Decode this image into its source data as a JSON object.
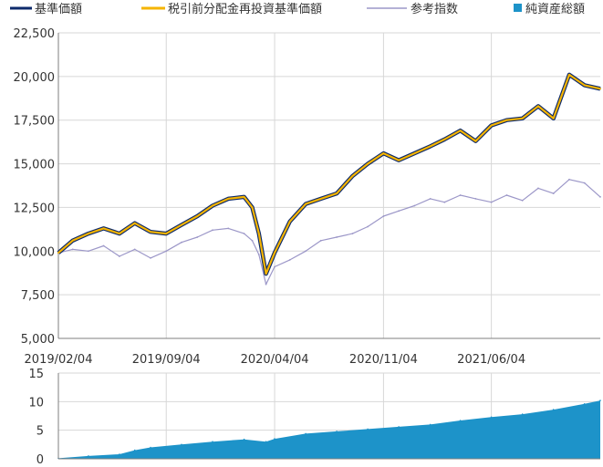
{
  "colors": {
    "nav": "#0d2a6b",
    "reinvested": "#f5b400",
    "index": "#9c97c8",
    "net_assets": "#1d93c9",
    "grid": "#d7d7d7",
    "axis": "#7f7f7f",
    "text": "#333333"
  },
  "legend": {
    "nav": "基準価額",
    "reinvested": "税引前分配金再投資基準価額",
    "index": "参考指数",
    "net_assets": "純資産総額"
  },
  "chart_data": [
    {
      "type": "line",
      "x_tick_labels": [
        "2019/02/04",
        "2019/09/04",
        "2020/04/04",
        "2020/11/04",
        "2021/06/04"
      ],
      "y_tick_labels": [
        "5,000",
        "7,500",
        "10,000",
        "12,500",
        "15,000",
        "17,500",
        "20,000",
        "22,500"
      ],
      "ylim": [
        5000,
        22500
      ],
      "y_ticks": [
        5000,
        7500,
        10000,
        12500,
        15000,
        17500,
        20000,
        22500
      ],
      "grid": true,
      "legend_position": "top",
      "x": [
        "2019-02-04",
        "2019-03-04",
        "2019-04-04",
        "2019-05-04",
        "2019-06-04",
        "2019-07-04",
        "2019-08-04",
        "2019-09-04",
        "2019-10-04",
        "2019-11-04",
        "2019-12-04",
        "2020-01-04",
        "2020-02-04",
        "2020-02-20",
        "2020-03-04",
        "2020-03-18",
        "2020-04-04",
        "2020-05-04",
        "2020-06-04",
        "2020-07-04",
        "2020-08-04",
        "2020-09-04",
        "2020-10-04",
        "2020-11-04",
        "2020-12-04",
        "2021-01-04",
        "2021-02-04",
        "2021-03-04",
        "2021-04-04",
        "2021-05-04",
        "2021-06-04",
        "2021-07-04",
        "2021-08-04",
        "2021-09-04",
        "2021-10-04",
        "2021-11-04",
        "2021-12-04",
        "2022-01-04"
      ],
      "series": [
        {
          "name": "基準価額",
          "values": [
            9900,
            10600,
            11000,
            11300,
            11000,
            11600,
            11100,
            11000,
            11500,
            12000,
            12600,
            13000,
            13100,
            12500,
            11000,
            8700,
            9900,
            11700,
            12700,
            13000,
            13300,
            14300,
            15000,
            15600,
            15200,
            15600,
            16000,
            16400,
            16900,
            16300,
            17200,
            17500,
            17600,
            18300,
            17600,
            20100,
            19500,
            19300
          ]
        },
        {
          "name": "税引前分配金再投資基準価額",
          "values": [
            9900,
            10600,
            11000,
            11300,
            11000,
            11600,
            11100,
            11000,
            11500,
            12000,
            12600,
            13000,
            13100,
            12500,
            11000,
            8700,
            9900,
            11700,
            12700,
            13000,
            13300,
            14300,
            15000,
            15600,
            15200,
            15600,
            16000,
            16400,
            16900,
            16300,
            17200,
            17500,
            17600,
            18300,
            17600,
            20100,
            19500,
            19300
          ]
        },
        {
          "name": "参考指数",
          "values": [
            9900,
            10100,
            10000,
            10300,
            9700,
            10100,
            9600,
            10000,
            10500,
            10800,
            11200,
            11300,
            11000,
            10600,
            9800,
            8100,
            9100,
            9500,
            10000,
            10600,
            10800,
            11000,
            11400,
            12000,
            12300,
            12600,
            13000,
            12800,
            13200,
            13000,
            12800,
            13200,
            12900,
            13600,
            13300,
            14100,
            13900,
            13100
          ]
        }
      ]
    },
    {
      "type": "area",
      "y_tick_labels": [
        "0",
        "5",
        "10",
        "15"
      ],
      "ylim": [
        0,
        15
      ],
      "y_ticks": [
        0,
        5,
        10,
        15
      ],
      "grid": true,
      "x": [
        "2019-02-04",
        "2019-04-04",
        "2019-06-04",
        "2019-07-04",
        "2019-08-04",
        "2019-10-04",
        "2019-12-04",
        "2020-02-04",
        "2020-03-18",
        "2020-04-04",
        "2020-06-04",
        "2020-08-04",
        "2020-10-04",
        "2020-12-04",
        "2021-02-04",
        "2021-04-04",
        "2021-06-04",
        "2021-08-04",
        "2021-10-04",
        "2021-12-04",
        "2022-01-04"
      ],
      "series": [
        {
          "name": "純資産総額",
          "values": [
            0.1,
            0.5,
            0.8,
            1.5,
            2.0,
            2.5,
            3.0,
            3.4,
            3.0,
            3.5,
            4.4,
            4.8,
            5.2,
            5.6,
            6.0,
            6.7,
            7.3,
            7.8,
            8.6,
            9.6,
            10.2
          ]
        }
      ]
    }
  ]
}
